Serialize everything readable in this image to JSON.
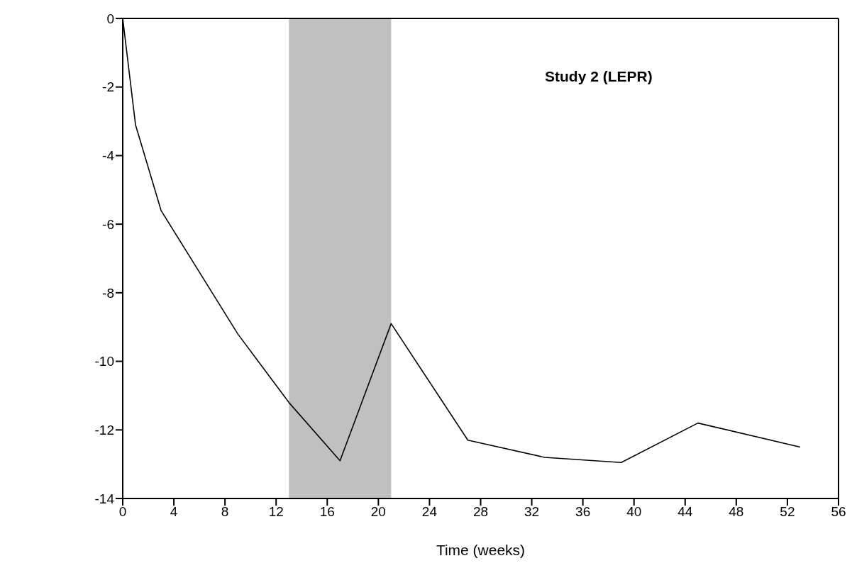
{
  "chart_data": {
    "type": "line",
    "xlabel": "Time (weeks)",
    "annotations": [
      "Study 2 (LEPR)"
    ],
    "x": [
      0,
      1,
      3,
      5,
      9,
      13,
      17,
      21,
      27,
      33,
      39,
      45,
      53
    ],
    "series": [
      {
        "color": "#000000",
        "values": [
          0,
          -3.1,
          -5.6,
          -6.8,
          -9.2,
          -11.2,
          -12.9,
          -8.9,
          -12.3,
          -12.8,
          -12.95,
          -11.8,
          -12.5
        ]
      }
    ],
    "xlim": [
      0,
      56
    ],
    "xticks": [
      0,
      4,
      8,
      12,
      16,
      20,
      24,
      28,
      32,
      36,
      40,
      44,
      48,
      52,
      56
    ],
    "ylim": [
      -14,
      0
    ],
    "yticks": [
      -14,
      -12,
      -10,
      -8,
      -6,
      -4,
      -2,
      0
    ],
    "bands": [
      {
        "axis": "x",
        "from": 13,
        "to": 21,
        "color": "#c0c0c0"
      }
    ],
    "grid": false,
    "legend": false,
    "marker": "none",
    "line_style": "solid"
  }
}
